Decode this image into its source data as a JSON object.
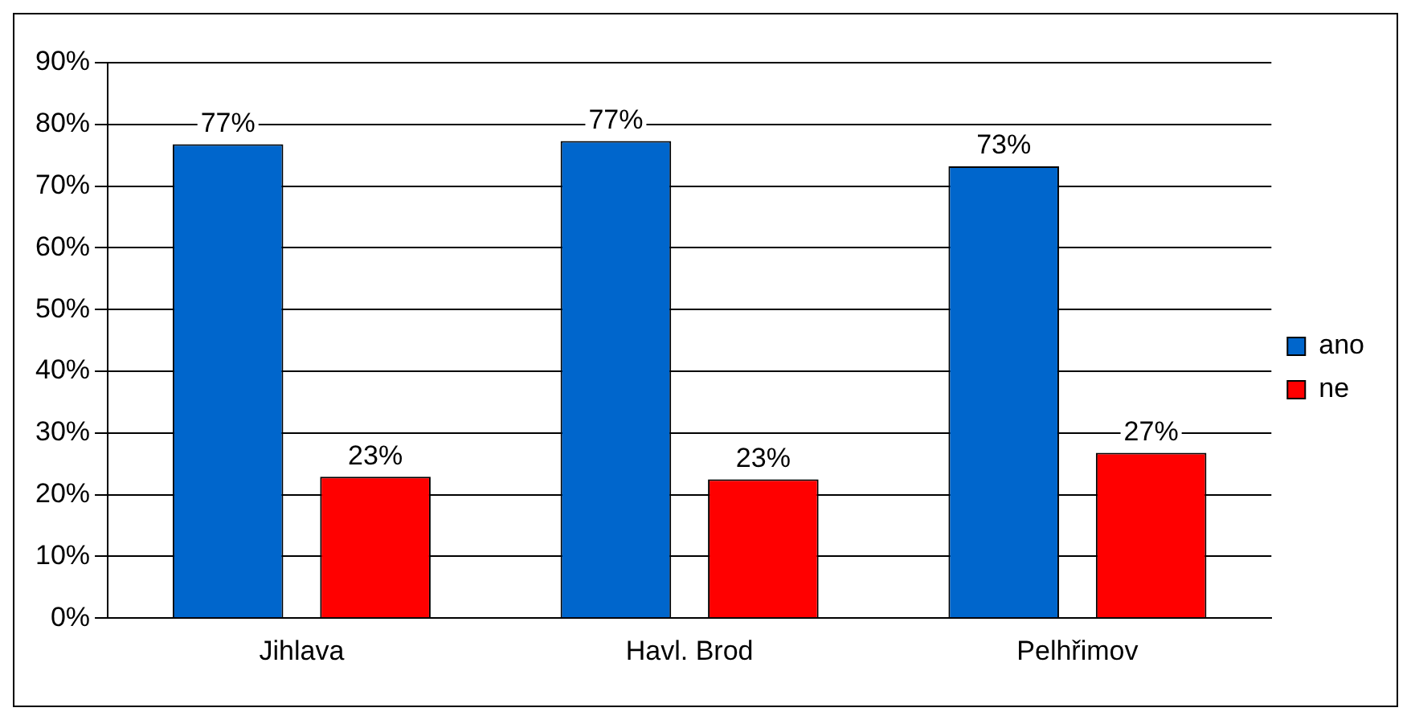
{
  "chart_data": {
    "type": "bar",
    "categories": [
      "Jihlava",
      "Havl. Brod",
      "Pelhřimov"
    ],
    "series": [
      {
        "name": "ano",
        "color": "#0066cc",
        "values": [
          76.8,
          77.3,
          73.2
        ],
        "value_labels": [
          "77%",
          "77%",
          "73%"
        ]
      },
      {
        "name": "ne",
        "color": "#ff0000",
        "values": [
          22.9,
          22.5,
          26.8
        ],
        "value_labels": [
          "23%",
          "23%",
          "27%"
        ]
      }
    ],
    "ylim": [
      0,
      90
    ],
    "yticks": [
      {
        "value": 0,
        "label": "0%"
      },
      {
        "value": 10,
        "label": "10%"
      },
      {
        "value": 20,
        "label": "20%"
      },
      {
        "value": 30,
        "label": "30%"
      },
      {
        "value": 40,
        "label": "40%"
      },
      {
        "value": 50,
        "label": "50%"
      },
      {
        "value": 60,
        "label": "60%"
      },
      {
        "value": 70,
        "label": "70%"
      },
      {
        "value": 80,
        "label": "80%"
      },
      {
        "value": 90,
        "label": "90%"
      }
    ],
    "grid": "y",
    "legend": "right"
  }
}
